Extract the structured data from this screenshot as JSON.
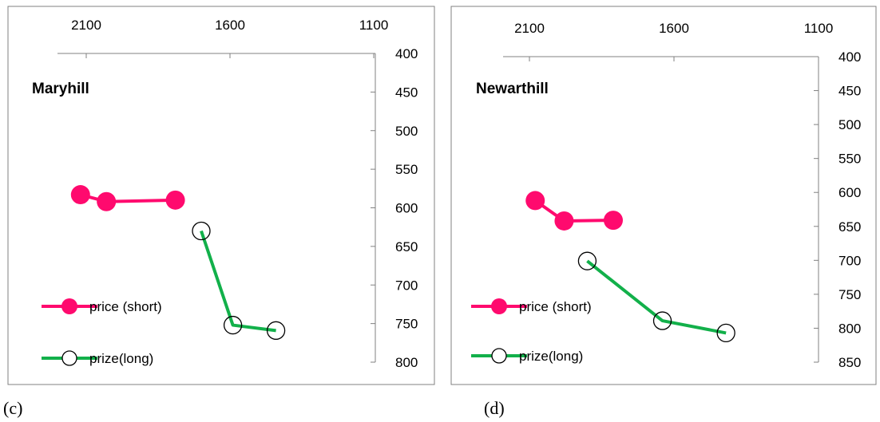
{
  "colors": {
    "short_series": "#ff0a6e",
    "long_series": "#12b04a",
    "axis": "#808080",
    "frame": "#808080"
  },
  "legend": {
    "short": "price (short)",
    "long": "prize(long)"
  },
  "chart_data": [
    {
      "type": "line",
      "title": "Maryhill",
      "caption": "(c)",
      "x_axis": {
        "position": "top",
        "reversed": true,
        "ticks": [
          2100,
          1600,
          1100
        ]
      },
      "y_axis": {
        "position": "right",
        "reversed": true,
        "range": [
          400,
          800
        ],
        "ticks": [
          400,
          450,
          500,
          550,
          600,
          650,
          700,
          750,
          800
        ]
      },
      "series": [
        {
          "name": "price (short)",
          "marker": "filled-circle",
          "points": [
            [
              2120,
              583
            ],
            [
              2030,
              592
            ],
            [
              1790,
              590
            ]
          ]
        },
        {
          "name": "prize(long)",
          "marker": "open-circle",
          "points": [
            [
              1700,
              630
            ],
            [
              1590,
              752
            ],
            [
              1440,
              759
            ]
          ]
        }
      ]
    },
    {
      "type": "line",
      "title": "Newarthill",
      "caption": "(d)",
      "x_axis": {
        "position": "top",
        "reversed": true,
        "ticks": [
          2100,
          1600,
          1100
        ]
      },
      "y_axis": {
        "position": "right",
        "reversed": true,
        "range": [
          400,
          850
        ],
        "ticks": [
          400,
          450,
          500,
          550,
          600,
          650,
          700,
          750,
          800,
          850
        ]
      },
      "series": [
        {
          "name": "price (short)",
          "marker": "filled-circle",
          "points": [
            [
              2080,
              612
            ],
            [
              1980,
              642
            ],
            [
              1810,
              641
            ]
          ]
        },
        {
          "name": "prize(long)",
          "marker": "open-circle",
          "points": [
            [
              1900,
              701
            ],
            [
              1640,
              789
            ],
            [
              1420,
              807
            ]
          ]
        }
      ]
    }
  ]
}
